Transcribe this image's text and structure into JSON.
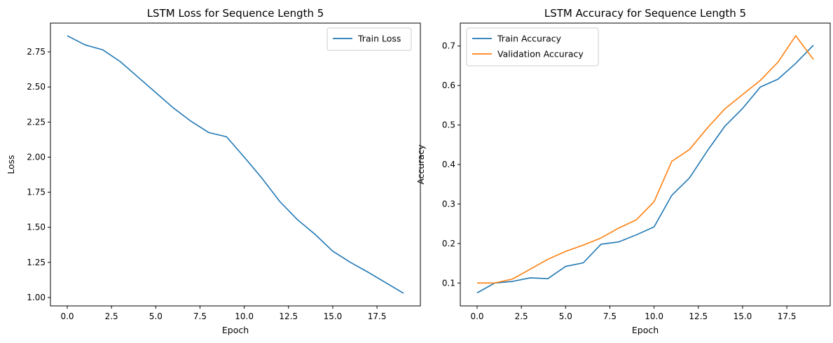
{
  "chart_data": [
    {
      "type": "line",
      "title": "LSTM Loss for Sequence Length 5",
      "xlabel": "Epoch",
      "ylabel": "Loss",
      "xlim": [
        -0.95,
        19.95
      ],
      "ylim": [
        0.94,
        2.955
      ],
      "xticks": [
        0,
        2.5,
        5,
        7.5,
        10,
        12.5,
        15,
        17.5
      ],
      "xtick_labels": [
        "0.0",
        "2.5",
        "5.0",
        "7.5",
        "10.0",
        "12.5",
        "15.0",
        "17.5"
      ],
      "yticks": [
        1.0,
        1.25,
        1.5,
        1.75,
        2.0,
        2.25,
        2.5,
        2.75
      ],
      "ytick_labels": [
        "1.00",
        "1.25",
        "1.50",
        "1.75",
        "2.00",
        "2.25",
        "2.50",
        "2.75"
      ],
      "grid": false,
      "legend_position": "top-right",
      "x": [
        0,
        1,
        2,
        3,
        4,
        5,
        6,
        7,
        8,
        9,
        10,
        11,
        12,
        13,
        14,
        15,
        16,
        17,
        18,
        19
      ],
      "series": [
        {
          "name": "Train Loss",
          "color": "#1f77b4",
          "values": [
            2.865,
            2.8,
            2.765,
            2.68,
            2.57,
            2.46,
            2.35,
            2.255,
            2.175,
            2.145,
            2.0,
            1.85,
            1.685,
            1.555,
            1.45,
            1.33,
            1.25,
            1.18,
            1.105,
            1.03
          ]
        }
      ]
    },
    {
      "type": "line",
      "title": "LSTM Accuracy for Sequence Length 5",
      "xlabel": "Epoch",
      "ylabel": "Accuracy",
      "xlim": [
        -0.95,
        19.95
      ],
      "ylim": [
        0.042,
        0.758
      ],
      "xticks": [
        0,
        2.5,
        5,
        7.5,
        10,
        12.5,
        15,
        17.5
      ],
      "xtick_labels": [
        "0.0",
        "2.5",
        "5.0",
        "7.5",
        "10.0",
        "12.5",
        "15.0",
        "17.5"
      ],
      "yticks": [
        0.1,
        0.2,
        0.3,
        0.4,
        0.5,
        0.6,
        0.7
      ],
      "ytick_labels": [
        "0.1",
        "0.2",
        "0.3",
        "0.4",
        "0.5",
        "0.6",
        "0.7"
      ],
      "grid": false,
      "legend_position": "top-left",
      "x": [
        0,
        1,
        2,
        3,
        4,
        5,
        6,
        7,
        8,
        9,
        10,
        11,
        12,
        13,
        14,
        15,
        16,
        17,
        18,
        19
      ],
      "series": [
        {
          "name": "Train Accuracy",
          "color": "#1f77b4",
          "values": [
            0.075,
            0.1,
            0.104,
            0.113,
            0.111,
            0.142,
            0.151,
            0.198,
            0.204,
            0.222,
            0.242,
            0.322,
            0.366,
            0.434,
            0.497,
            0.542,
            0.596,
            0.616,
            0.656,
            0.702
          ]
        },
        {
          "name": "Validation Accuracy",
          "color": "#ff7f0e",
          "values": [
            0.1,
            0.1,
            0.11,
            0.135,
            0.16,
            0.18,
            0.196,
            0.214,
            0.239,
            0.26,
            0.306,
            0.408,
            0.438,
            0.492,
            0.541,
            0.577,
            0.613,
            0.659,
            0.726,
            0.666
          ]
        }
      ]
    }
  ]
}
